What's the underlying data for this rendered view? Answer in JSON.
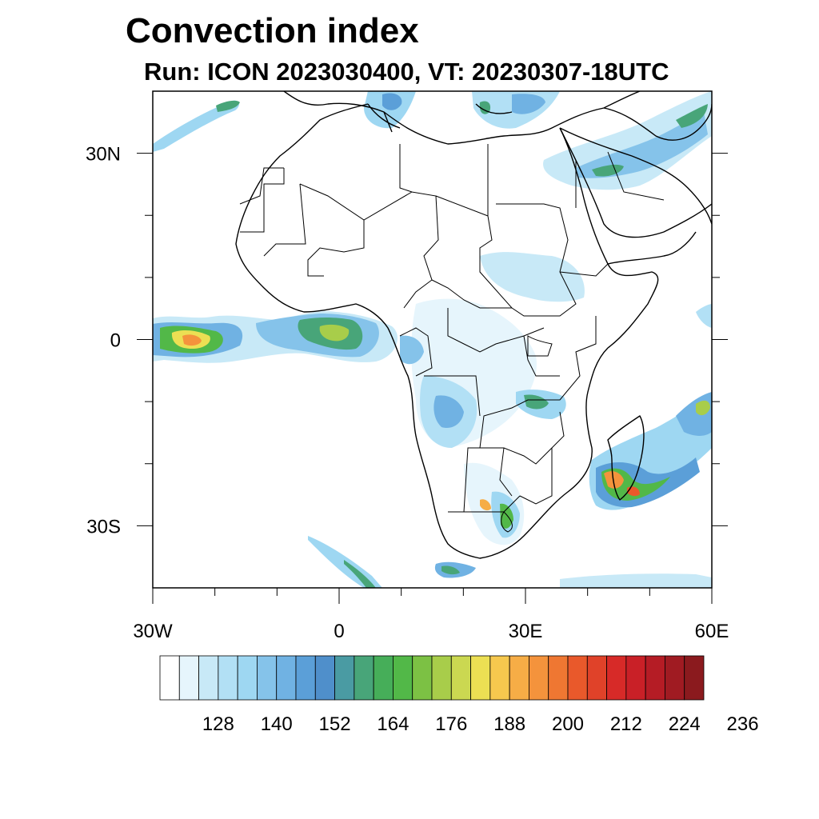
{
  "header": {
    "title": "Convection index",
    "subtitle": "Run: ICON 2023030400,  VT: 20230307-18UTC"
  },
  "map": {
    "region": "Africa",
    "lon_range": [
      -30,
      60
    ],
    "lat_range": [
      -40,
      40
    ],
    "x_ticks": [
      {
        "lon": -30,
        "label": "30W"
      },
      {
        "lon": 0,
        "label": "0"
      },
      {
        "lon": 30,
        "label": "30E"
      },
      {
        "lon": 60,
        "label": "60E"
      }
    ],
    "y_ticks": [
      {
        "lat": 30,
        "label": "30N"
      },
      {
        "lat": 0,
        "label": "0"
      },
      {
        "lat": -30,
        "label": "30S"
      }
    ],
    "minor_x_ticks": [
      -20,
      -10,
      10,
      20,
      40,
      50
    ],
    "minor_y_ticks": [
      20,
      10,
      -10,
      -20
    ]
  },
  "colorbar": {
    "colors": [
      "#ffffff",
      "#e6f5fc",
      "#c8e9f7",
      "#b2e0f5",
      "#9ed7f2",
      "#85c3ea",
      "#70b2e3",
      "#5b9fd8",
      "#4f8fcb",
      "#4a9ba3",
      "#48a579",
      "#46ae59",
      "#52b848",
      "#7cc144",
      "#a8cd4a",
      "#cbd851",
      "#ecdf53",
      "#f6c84e",
      "#f6ad46",
      "#f4933c",
      "#ef7732",
      "#e9592b",
      "#e04229",
      "#d72a28",
      "#c92027",
      "#b51c25",
      "#a01b22",
      "#8b1a1e"
    ],
    "labels": [
      "128",
      "140",
      "152",
      "164",
      "176",
      "188",
      "200",
      "212",
      "224",
      "236"
    ]
  }
}
